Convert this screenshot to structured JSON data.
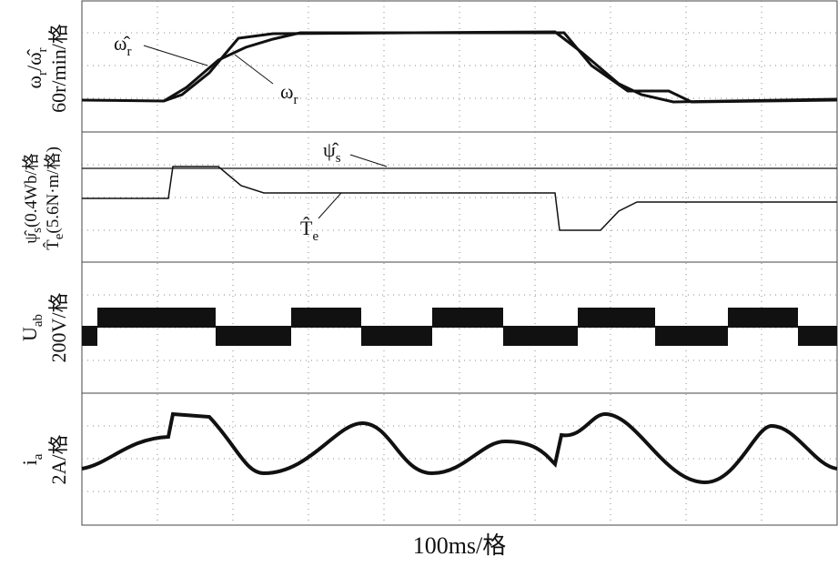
{
  "panels": [
    {
      "ylabel": {
        "main": "ω",
        "sub": "r",
        "sep": "/ω̂",
        "sub2": "r",
        "unit": "60r/min/格"
      },
      "annotations": [
        {
          "main": "ω̂",
          "sub": "r"
        },
        {
          "main": "ω",
          "sub": "r"
        }
      ]
    },
    {
      "ylabel": {
        "line1_main": "ψ̂",
        "line1_sub": "s",
        "line1_unit": "(0.4Wb/格",
        "line2_main": "T̂",
        "line2_sub": "e",
        "line2_unit": "(5.6N·m/格)"
      },
      "annotations": [
        {
          "main": "ψ̂",
          "sub": "s"
        },
        {
          "main": "T̂",
          "sub": "e"
        }
      ]
    },
    {
      "ylabel": {
        "main": "U",
        "sub": "ab",
        "unit": "200V/格"
      }
    },
    {
      "ylabel": {
        "main": "i",
        "sub": "a",
        "unit": "2A/格"
      }
    }
  ],
  "xlabel": "100ms/格"
}
